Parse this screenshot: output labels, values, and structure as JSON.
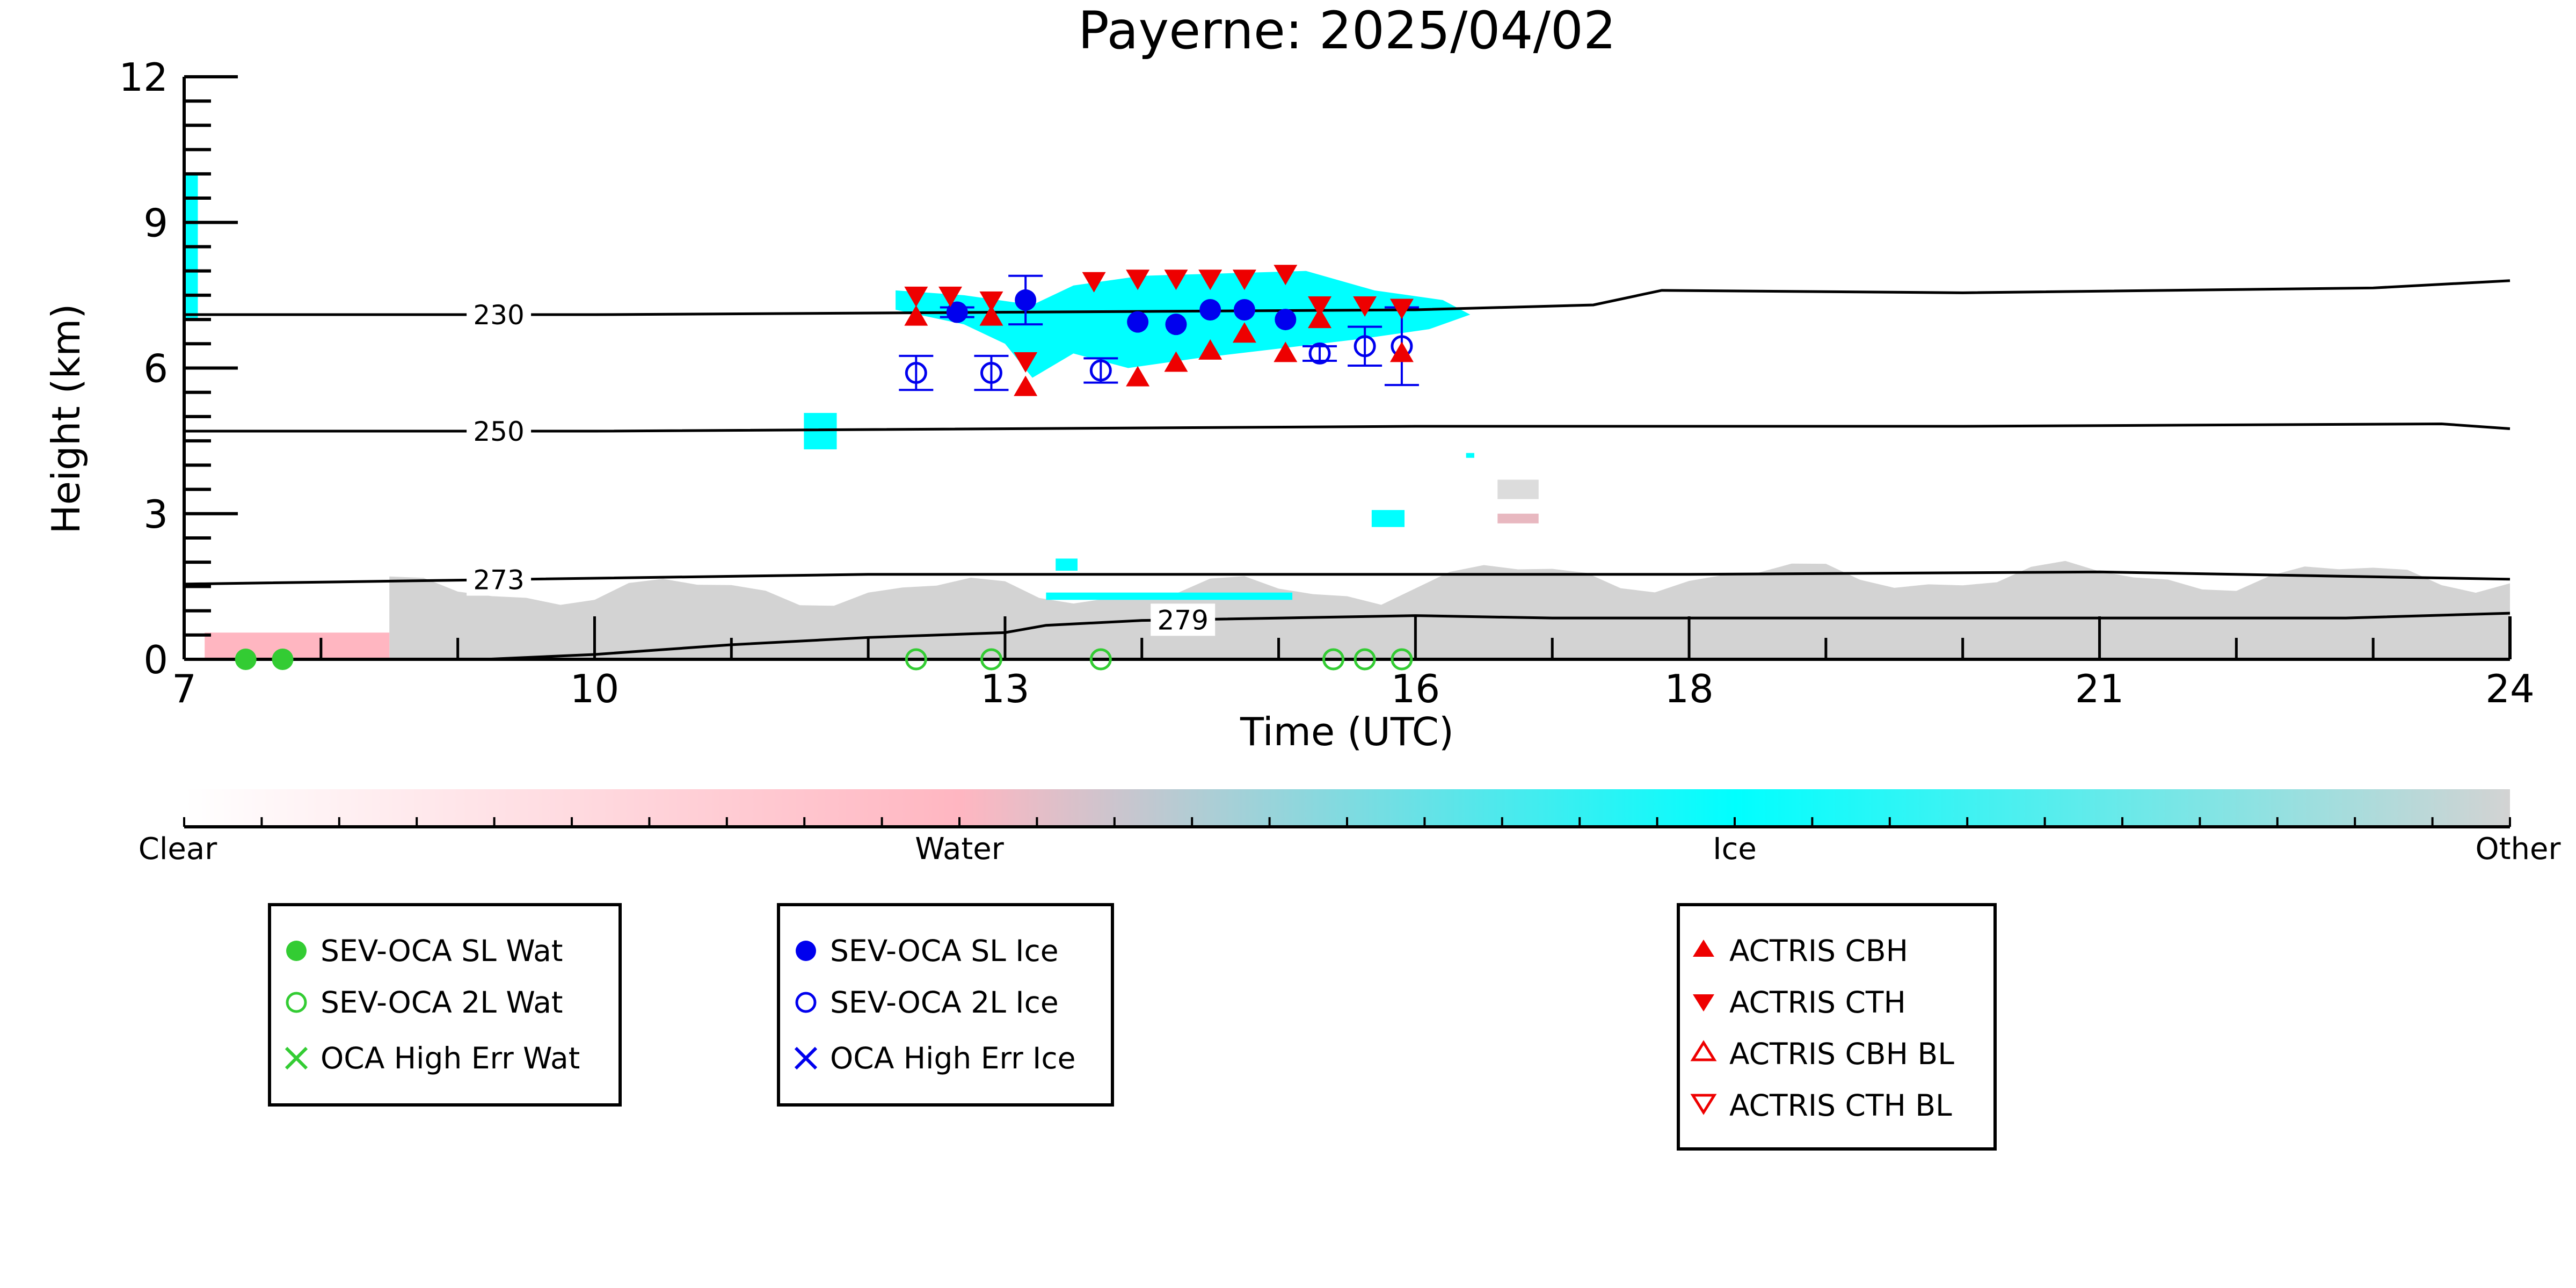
{
  "chart_data": {
    "type": "scatter",
    "title": "Payerne: 2025/04/02",
    "xlabel": "Time (UTC)",
    "ylabel": "Height (km)",
    "xlim": [
      7,
      24
    ],
    "ylim": [
      0,
      12
    ],
    "x_ticks": [
      "7",
      "10",
      "13",
      "16",
      "18",
      "21",
      "24"
    ],
    "y_ticks": [
      "0",
      "3",
      "6",
      "9",
      "12"
    ],
    "colorbar": {
      "labels": [
        "Clear",
        "Water",
        "Ice",
        "Other"
      ],
      "colors": [
        "#ffffff",
        "#ffb6c1",
        "#00ffff",
        "#d3d3d3"
      ]
    },
    "isotherms": [
      {
        "label": "230",
        "points": [
          [
            7,
            7.1
          ],
          [
            10,
            7.1
          ],
          [
            13,
            7.15
          ],
          [
            16,
            7.2
          ],
          [
            17.3,
            7.3
          ],
          [
            17.8,
            7.6
          ],
          [
            20,
            7.55
          ],
          [
            23,
            7.65
          ],
          [
            24,
            7.8
          ]
        ]
      },
      {
        "label": "250",
        "points": [
          [
            7,
            4.7
          ],
          [
            10,
            4.7
          ],
          [
            16,
            4.8
          ],
          [
            20,
            4.8
          ],
          [
            23.5,
            4.85
          ],
          [
            24,
            4.75
          ]
        ]
      },
      {
        "label": "273",
        "points": [
          [
            7,
            1.55
          ],
          [
            9.5,
            1.65
          ],
          [
            12,
            1.75
          ],
          [
            18,
            1.75
          ],
          [
            21,
            1.8
          ],
          [
            24,
            1.65
          ]
        ]
      },
      {
        "label": "279",
        "points": [
          [
            7,
            0.0
          ],
          [
            9.2,
            0.0
          ],
          [
            10,
            0.1
          ],
          [
            11,
            0.3
          ],
          [
            12,
            0.45
          ],
          [
            13,
            0.55
          ],
          [
            13.3,
            0.7
          ],
          [
            14,
            0.8
          ],
          [
            16,
            0.9
          ],
          [
            17,
            0.85
          ],
          [
            20,
            0.85
          ],
          [
            22.8,
            0.85
          ],
          [
            24,
            0.95
          ]
        ]
      }
    ],
    "series": [
      {
        "name": "SEV-OCA SL Wat",
        "marker": "filled-circle",
        "color": "#33cc33",
        "points": [
          [
            7.45,
            0.0
          ],
          [
            7.72,
            0.0
          ]
        ]
      },
      {
        "name": "SEV-OCA 2L Wat",
        "marker": "open-circle",
        "color": "#33cc33",
        "points": [
          [
            12.35,
            0.0
          ],
          [
            12.9,
            0.0
          ],
          [
            13.7,
            0.0
          ],
          [
            15.4,
            0.0
          ],
          [
            15.63,
            0.0
          ],
          [
            15.9,
            0.0
          ]
        ]
      },
      {
        "name": "OCA High Err Wat",
        "marker": "x",
        "color": "#33cc33",
        "points": []
      },
      {
        "name": "SEV-OCA SL Ice",
        "marker": "filled-circle",
        "color": "#0000ee",
        "points": [
          [
            12.65,
            7.15,
            0.1
          ],
          [
            13.15,
            7.4,
            0.5
          ],
          [
            13.97,
            6.95,
            0.0
          ],
          [
            14.25,
            6.9,
            0.0
          ],
          [
            14.5,
            7.2,
            0.0
          ],
          [
            14.75,
            7.2,
            0.0
          ],
          [
            15.05,
            7.0,
            0.0
          ]
        ]
      },
      {
        "name": "SEV-OCA 2L Ice",
        "marker": "open-circle",
        "color": "#0000ee",
        "points": [
          [
            12.35,
            5.9,
            0.35
          ],
          [
            12.9,
            5.9,
            0.35
          ],
          [
            13.7,
            5.95,
            0.25
          ],
          [
            15.3,
            6.3,
            0.15
          ],
          [
            15.63,
            6.45,
            0.4
          ],
          [
            15.9,
            6.45,
            0.8
          ]
        ]
      },
      {
        "name": "OCA High Err Ice",
        "marker": "x",
        "color": "#0000ee",
        "points": []
      },
      {
        "name": "ACTRIS CBH",
        "marker": "triangle-up",
        "color": "#ee0000",
        "points": [
          [
            12.35,
            7.05
          ],
          [
            12.9,
            7.05
          ],
          [
            13.15,
            5.6
          ],
          [
            13.97,
            5.8
          ],
          [
            14.25,
            6.1
          ],
          [
            14.5,
            6.35
          ],
          [
            14.75,
            6.7
          ],
          [
            15.05,
            6.3
          ],
          [
            15.3,
            7.0
          ],
          [
            15.9,
            6.3
          ]
        ]
      },
      {
        "name": "ACTRIS CTH",
        "marker": "triangle-down",
        "color": "#ee0000",
        "points": [
          [
            12.35,
            7.5
          ],
          [
            12.6,
            7.5
          ],
          [
            12.9,
            7.4
          ],
          [
            13.15,
            6.15
          ],
          [
            13.65,
            7.8
          ],
          [
            13.97,
            7.85
          ],
          [
            14.25,
            7.85
          ],
          [
            14.5,
            7.85
          ],
          [
            14.75,
            7.85
          ],
          [
            15.05,
            7.95
          ],
          [
            15.3,
            7.3
          ],
          [
            15.63,
            7.3
          ],
          [
            15.9,
            7.25
          ]
        ]
      },
      {
        "name": "ACTRIS CBH BL",
        "marker": "open-triangle-up",
        "color": "#ee0000",
        "points": []
      },
      {
        "name": "ACTRIS CTH BL",
        "marker": "open-triangle-down",
        "color": "#ee0000",
        "points": []
      }
    ],
    "grid": false
  }
}
